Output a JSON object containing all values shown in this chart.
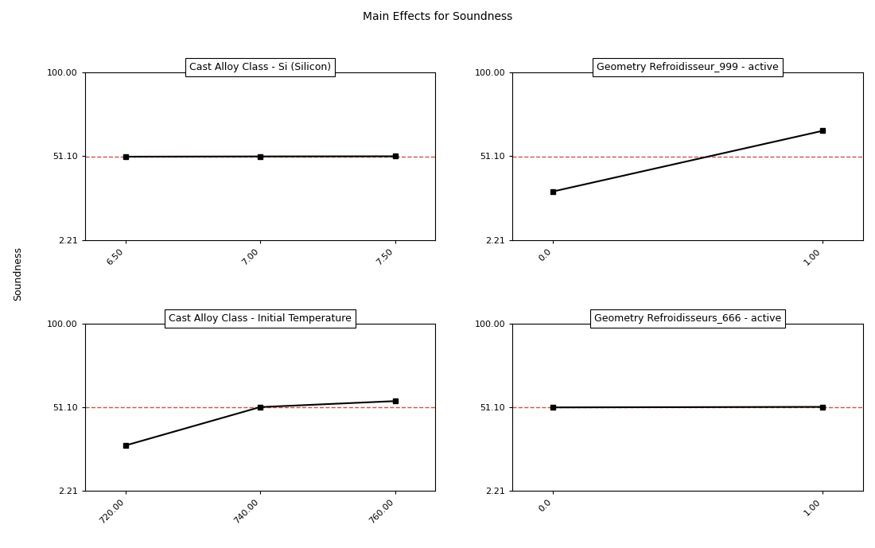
{
  "title": "Main Effects for Soundness",
  "ylabel": "Soundness",
  "grand_mean": 51.08,
  "ylim": [
    2.21,
    100.0
  ],
  "yticks": [
    2.21,
    51.1,
    100.0
  ],
  "subplots": [
    {
      "title": "Cast Alloy Class - Si (Silicon)",
      "x": [
        6.5,
        7.0,
        7.5
      ],
      "y": [
        50.88,
        51.02,
        51.1
      ],
      "xticks": [
        6.5,
        7.0,
        7.5
      ],
      "xticklabels": [
        "6.50",
        "7.00",
        "7.50"
      ]
    },
    {
      "title": "Geometry Refroidisseur_999 - active",
      "x": [
        0.0,
        1.0
      ],
      "y": [
        30.5,
        66.0
      ],
      "xticks": [
        0.0,
        1.0
      ],
      "xticklabels": [
        "0.0",
        "1.00"
      ]
    },
    {
      "title": "Cast Alloy Class - Initial Temperature",
      "x": [
        720.0,
        740.0,
        760.0
      ],
      "y": [
        28.5,
        51.0,
        54.5
      ],
      "xticks": [
        720.0,
        740.0,
        760.0
      ],
      "xticklabels": [
        "720.00",
        "740.00",
        "760.00"
      ]
    },
    {
      "title": "Geometry Refroidisseurs_666 - active",
      "x": [
        0.0,
        1.0
      ],
      "y": [
        50.82,
        51.12
      ],
      "xticks": [
        0.0,
        1.0
      ],
      "xticklabels": [
        "0.0",
        "1.00"
      ]
    }
  ],
  "line_color": "black",
  "marker": "s",
  "marker_size": 4,
  "dashed_color": "#cc5544",
  "background_color": "white",
  "title_fontsize": 10,
  "subplot_title_fontsize": 9,
  "tick_fontsize": 8,
  "ylabel_fontsize": 9
}
